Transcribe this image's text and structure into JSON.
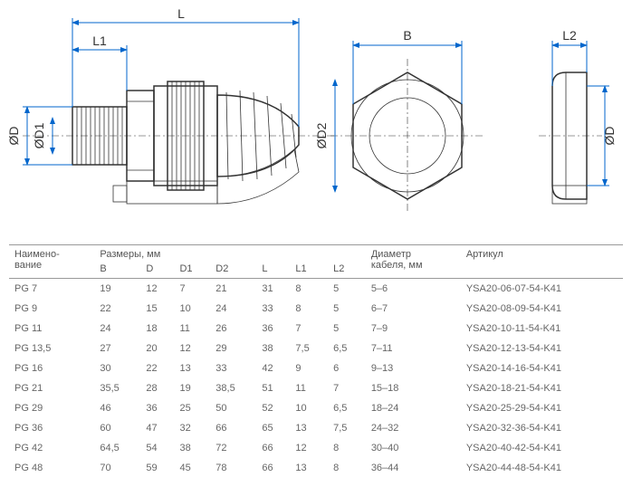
{
  "diagram": {
    "labels": {
      "L": "L",
      "L1": "L1",
      "L2": "L2",
      "B": "B",
      "D": "ØD",
      "D1": "ØD1",
      "D2": "ØD2",
      "D_right": "ØD"
    },
    "watermark": ""
  },
  "table": {
    "headers": {
      "name": "Наимено-\nвание",
      "dims_group": "Размеры, мм",
      "B": "B",
      "D": "D",
      "D1": "D1",
      "D2": "D2",
      "L": "L",
      "L1": "L1",
      "L2": "L2",
      "cable_diam": "Диаметр\nкабеля, мм",
      "article": "Артикул"
    },
    "rows": [
      {
        "name": "PG 7",
        "B": "19",
        "D": "12",
        "D1": "7",
        "D2": "21",
        "L": "31",
        "L1": "8",
        "L2": "5",
        "cable": "5–6",
        "art": "YSA20-06-07-54-K41"
      },
      {
        "name": "PG 9",
        "B": "22",
        "D": "15",
        "D1": "10",
        "D2": "24",
        "L": "33",
        "L1": "8",
        "L2": "5",
        "cable": "6–7",
        "art": "YSA20-08-09-54-K41"
      },
      {
        "name": "PG 11",
        "B": "24",
        "D": "18",
        "D1": "11",
        "D2": "26",
        "L": "36",
        "L1": "7",
        "L2": "5",
        "cable": "7–9",
        "art": "YSA20-10-11-54-K41"
      },
      {
        "name": "PG 13,5",
        "B": "27",
        "D": "20",
        "D1": "12",
        "D2": "29",
        "L": "38",
        "L1": "7,5",
        "L2": "6,5",
        "cable": "7–11",
        "art": "YSA20-12-13-54-K41"
      },
      {
        "name": "PG 16",
        "B": "30",
        "D": "22",
        "D1": "13",
        "D2": "33",
        "L": "42",
        "L1": "9",
        "L2": "6",
        "cable": "9–13",
        "art": "YSA20-14-16-54-K41"
      },
      {
        "name": "PG 21",
        "B": "35,5",
        "D": "28",
        "D1": "19",
        "D2": "38,5",
        "L": "51",
        "L1": "11",
        "L2": "7",
        "cable": "15–18",
        "art": "YSA20-18-21-54-K41"
      },
      {
        "name": "PG 29",
        "B": "46",
        "D": "36",
        "D1": "25",
        "D2": "50",
        "L": "52",
        "L1": "10",
        "L2": "6,5",
        "cable": "18–24",
        "art": "YSA20-25-29-54-K41"
      },
      {
        "name": "PG 36",
        "B": "60",
        "D": "47",
        "D1": "32",
        "D2": "66",
        "L": "65",
        "L1": "13",
        "L2": "7,5",
        "cable": "24–32",
        "art": "YSA20-32-36-54-K41"
      },
      {
        "name": "PG 42",
        "B": "64,5",
        "D": "54",
        "D1": "38",
        "D2": "72",
        "L": "66",
        "L1": "12",
        "L2": "8",
        "cable": "30–40",
        "art": "YSA20-40-42-54-K41"
      },
      {
        "name": "PG 48",
        "B": "70",
        "D": "59",
        "D1": "45",
        "D2": "78",
        "L": "66",
        "L1": "13",
        "L2": "8",
        "cable": "36–44",
        "art": "YSA20-44-48-54-K41"
      }
    ]
  }
}
